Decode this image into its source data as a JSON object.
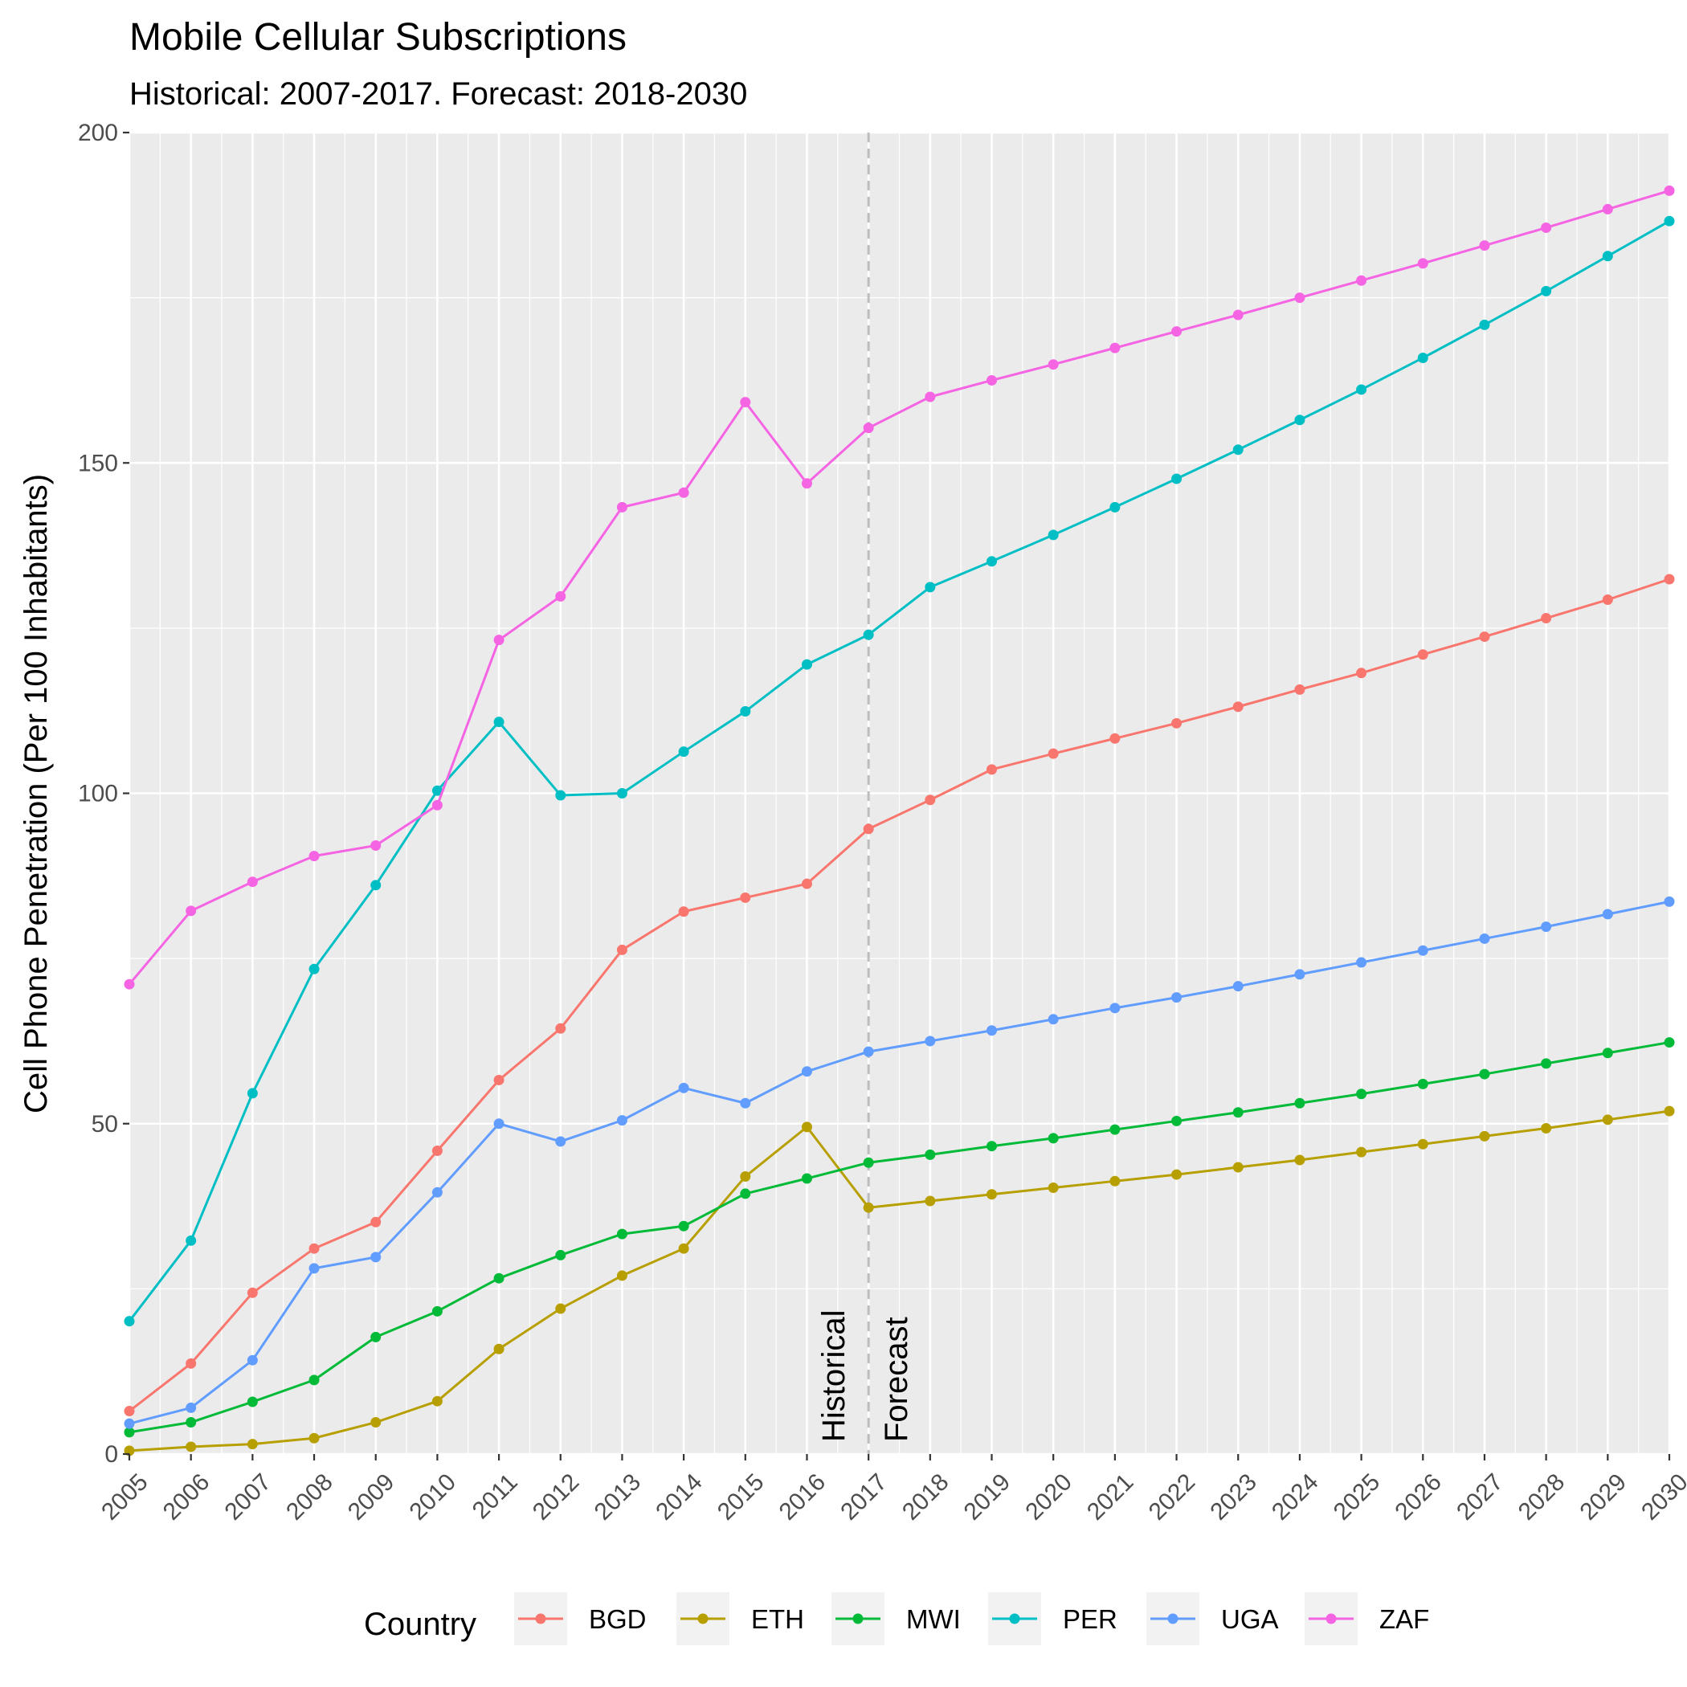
{
  "chart_data": {
    "type": "line",
    "title": "Mobile Cellular Subscriptions",
    "subtitle": "Historical: 2007-2017. Forecast: 2018-2030",
    "xlabel": "",
    "ylabel": "Cell Phone Penetration (Per 100 Inhabitants)",
    "xlim": [
      2005,
      2030
    ],
    "ylim": [
      0,
      200
    ],
    "x": [
      2005,
      2006,
      2007,
      2008,
      2009,
      2010,
      2011,
      2012,
      2013,
      2014,
      2015,
      2016,
      2017,
      2018,
      2019,
      2020,
      2021,
      2022,
      2023,
      2024,
      2025,
      2026,
      2027,
      2028,
      2029,
      2030
    ],
    "x_tick_labels": [
      "2005",
      "2006",
      "2007",
      "2008",
      "2009",
      "2010",
      "2011",
      "2012",
      "2013",
      "2014",
      "2015",
      "2016",
      "2017",
      "2018",
      "2019",
      "2020",
      "2021",
      "2022",
      "2023",
      "2024",
      "2025",
      "2026",
      "2027",
      "2028",
      "2029",
      "2030"
    ],
    "y_ticks": [
      0,
      50,
      100,
      150,
      200
    ],
    "y_tick_labels": [
      "0",
      "50",
      "100",
      "150",
      "200"
    ],
    "grid": true,
    "legend": {
      "title": "Country",
      "position": "bottom"
    },
    "vline": {
      "x": 2017,
      "style": "dashed",
      "color": "#bdbdbd"
    },
    "annotations": [
      {
        "text": "Historical",
        "x": 2017,
        "side": "left"
      },
      {
        "text": "Forecast",
        "x": 2017,
        "side": "right"
      }
    ],
    "series": [
      {
        "name": "BGD",
        "color": "#F8766D",
        "values": [
          6.5,
          13.7,
          24.4,
          31.1,
          35.1,
          45.9,
          56.6,
          64.4,
          76.3,
          82.1,
          84.2,
          86.3,
          94.6,
          99.0,
          103.6,
          106.0,
          108.3,
          110.6,
          113.1,
          115.7,
          118.2,
          121.0,
          123.7,
          126.5,
          129.3,
          132.4
        ]
      },
      {
        "name": "ETH",
        "color": "#B79F00",
        "values": [
          0.5,
          1.1,
          1.5,
          2.4,
          4.8,
          8.0,
          15.9,
          22.0,
          27.0,
          31.1,
          42.0,
          49.5,
          37.3,
          38.3,
          39.3,
          40.3,
          41.3,
          42.3,
          43.4,
          44.5,
          45.7,
          46.9,
          48.1,
          49.3,
          50.6,
          51.9
        ]
      },
      {
        "name": "MWI",
        "color": "#00BA38",
        "values": [
          3.3,
          4.8,
          7.9,
          11.2,
          17.7,
          21.6,
          26.6,
          30.1,
          33.3,
          34.5,
          39.4,
          41.7,
          44.1,
          45.3,
          46.6,
          47.8,
          49.1,
          50.4,
          51.7,
          53.1,
          54.5,
          56.0,
          57.5,
          59.1,
          60.7,
          62.3
        ]
      },
      {
        "name": "PER",
        "color": "#00BFC4",
        "values": [
          20.1,
          32.3,
          54.6,
          73.4,
          86.1,
          100.4,
          110.8,
          99.7,
          100.0,
          106.3,
          112.4,
          119.5,
          124.0,
          131.2,
          135.1,
          139.1,
          143.3,
          147.6,
          152.0,
          156.5,
          161.1,
          165.9,
          170.9,
          176.0,
          181.3,
          186.6
        ]
      },
      {
        "name": "UGA",
        "color": "#619CFF",
        "values": [
          4.6,
          7.0,
          14.2,
          28.1,
          29.8,
          39.6,
          50.0,
          47.3,
          50.5,
          55.4,
          53.1,
          57.9,
          60.9,
          62.5,
          64.1,
          65.8,
          67.5,
          69.1,
          70.8,
          72.6,
          74.4,
          76.2,
          78.0,
          79.8,
          81.7,
          83.6
        ]
      },
      {
        "name": "ZAF",
        "color": "#F564E3",
        "values": [
          71.1,
          82.2,
          86.6,
          90.5,
          92.1,
          98.2,
          123.2,
          129.8,
          143.3,
          145.5,
          159.2,
          146.9,
          155.3,
          160.0,
          162.5,
          164.9,
          167.4,
          169.9,
          172.4,
          175.0,
          177.6,
          180.2,
          182.9,
          185.6,
          188.4,
          191.2
        ]
      }
    ]
  }
}
